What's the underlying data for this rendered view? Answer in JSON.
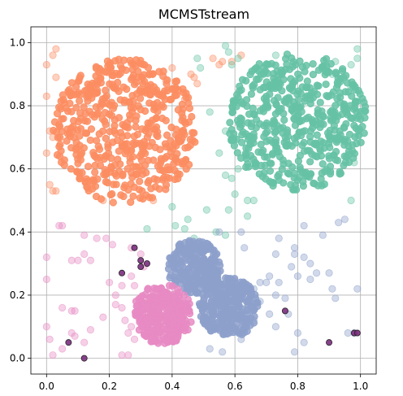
{
  "chart_data": {
    "type": "scatter",
    "title": "MCMSTstream",
    "xlabel": "",
    "ylabel": "",
    "xlim": [
      -0.05,
      1.05
    ],
    "ylim": [
      -0.05,
      1.05
    ],
    "x_ticks": [
      "0.0",
      "0.2",
      "0.4",
      "0.6",
      "0.8",
      "1.0"
    ],
    "y_ticks": [
      "0.0",
      "0.2",
      "0.4",
      "0.6",
      "0.8",
      "1.0"
    ],
    "grid": true,
    "legend": "none",
    "clusters": [
      {
        "color": "#fc8d62",
        "shape": "disk",
        "center": [
          0.25,
          0.72
        ],
        "radius": 0.23,
        "count": 520
      },
      {
        "color": "#66c2a5",
        "shape": "disk",
        "center": [
          0.8,
          0.75
        ],
        "radius": 0.22,
        "count": 520
      },
      {
        "color": "#8da0cb",
        "shape": "disk",
        "center": [
          0.47,
          0.29
        ],
        "radius": 0.085,
        "count": 230
      },
      {
        "color": "#8da0cb",
        "shape": "disk",
        "center": [
          0.58,
          0.16
        ],
        "radius": 0.095,
        "count": 280
      },
      {
        "color": "#e78ac3",
        "shape": "disk",
        "center": [
          0.37,
          0.14
        ],
        "radius": 0.095,
        "count": 300
      }
    ],
    "faint_points": [
      {
        "color": "#fc8d62",
        "points": [
          [
            0.02,
            0.96
          ],
          [
            0.03,
            0.98
          ],
          [
            0.0,
            0.93
          ],
          [
            0.0,
            0.83
          ],
          [
            0.01,
            0.72
          ],
          [
            0.02,
            0.7
          ],
          [
            0.0,
            0.65
          ],
          [
            0.01,
            0.55
          ],
          [
            0.02,
            0.53
          ],
          [
            0.03,
            0.53
          ],
          [
            0.03,
            0.89
          ],
          [
            0.38,
            0.88
          ],
          [
            0.4,
            0.92
          ],
          [
            0.41,
            0.84
          ],
          [
            0.44,
            0.82
          ],
          [
            0.46,
            0.9
          ],
          [
            0.47,
            0.89
          ],
          [
            0.48,
            0.87
          ],
          [
            0.53,
            0.95
          ],
          [
            0.55,
            0.93
          ],
          [
            0.56,
            0.94
          ],
          [
            0.59,
            0.94
          ],
          [
            0.62,
            0.96
          ],
          [
            0.15,
            0.85
          ],
          [
            0.18,
            0.5
          ],
          [
            0.34,
            0.5
          ]
        ]
      },
      {
        "color": "#66c2a5",
        "points": [
          [
            0.48,
            0.95
          ],
          [
            0.49,
            0.92
          ],
          [
            0.57,
            0.99
          ],
          [
            0.58,
            0.97
          ],
          [
            0.59,
            0.93
          ],
          [
            0.61,
            0.95
          ],
          [
            0.52,
            0.78
          ],
          [
            0.57,
            0.72
          ],
          [
            0.55,
            0.65
          ],
          [
            0.57,
            0.58
          ],
          [
            0.59,
            0.57
          ],
          [
            0.6,
            0.52
          ],
          [
            0.58,
            0.47
          ],
          [
            0.64,
            0.5
          ],
          [
            0.64,
            0.45
          ],
          [
            0.57,
            0.39
          ],
          [
            0.54,
            0.4
          ],
          [
            0.51,
            0.47
          ],
          [
            0.45,
            0.44
          ],
          [
            0.44,
            0.41
          ],
          [
            0.41,
            0.42
          ],
          [
            0.4,
            0.48
          ],
          [
            0.32,
            0.41
          ],
          [
            0.47,
            0.38
          ],
          [
            0.61,
            0.6
          ],
          [
            0.66,
            0.5
          ],
          [
            0.97,
            0.5
          ],
          [
            0.98,
            0.62
          ],
          [
            0.99,
            0.7
          ],
          [
            0.97,
            0.86
          ],
          [
            0.99,
            0.95
          ],
          [
            0.99,
            0.98
          ],
          [
            0.97,
            0.93
          ],
          [
            0.92,
            0.94
          ],
          [
            0.91,
            0.9
          ],
          [
            0.7,
            0.93
          ],
          [
            0.73,
            0.96
          ],
          [
            0.68,
            0.89
          ]
        ]
      },
      {
        "color": "#8da0cb",
        "points": [
          [
            0.95,
            0.44
          ],
          [
            0.93,
            0.43
          ],
          [
            0.99,
            0.22
          ],
          [
            0.92,
            0.19
          ],
          [
            0.91,
            0.22
          ],
          [
            0.9,
            0.27
          ],
          [
            0.84,
            0.3
          ],
          [
            0.86,
            0.27
          ],
          [
            0.84,
            0.25
          ],
          [
            0.82,
            0.32
          ],
          [
            0.8,
            0.26
          ],
          [
            0.78,
            0.29
          ],
          [
            0.79,
            0.33
          ],
          [
            0.73,
            0.33
          ],
          [
            0.74,
            0.38
          ],
          [
            0.79,
            0.35
          ],
          [
            0.82,
            0.42
          ],
          [
            0.88,
            0.39
          ],
          [
            0.66,
            0.22
          ],
          [
            0.68,
            0.24
          ],
          [
            0.7,
            0.24
          ],
          [
            0.71,
            0.26
          ],
          [
            0.73,
            0.2
          ],
          [
            0.74,
            0.24
          ],
          [
            0.76,
            0.19
          ],
          [
            0.71,
            0.14
          ],
          [
            0.73,
            0.1
          ],
          [
            0.77,
            0.14
          ],
          [
            0.8,
            0.08
          ],
          [
            0.82,
            0.05
          ],
          [
            0.79,
            0.02
          ],
          [
            0.96,
            0.08
          ],
          [
            0.98,
            0.08
          ],
          [
            0.56,
            0.02
          ],
          [
            0.52,
            0.03
          ],
          [
            0.62,
            0.06
          ],
          [
            0.66,
            0.12
          ],
          [
            0.68,
            0.18
          ],
          [
            0.63,
            0.35
          ],
          [
            0.62,
            0.4
          ],
          [
            0.55,
            0.4
          ]
        ]
      },
      {
        "color": "#e78ac3",
        "points": [
          [
            0.0,
            0.32
          ],
          [
            0.04,
            0.42
          ],
          [
            0.05,
            0.42
          ],
          [
            0.08,
            0.31
          ],
          [
            0.1,
            0.31
          ],
          [
            0.12,
            0.33
          ],
          [
            0.14,
            0.31
          ],
          [
            0.12,
            0.39
          ],
          [
            0.16,
            0.38
          ],
          [
            0.19,
            0.38
          ],
          [
            0.21,
            0.36
          ],
          [
            0.2,
            0.24
          ],
          [
            0.22,
            0.2
          ],
          [
            0.24,
            0.23
          ],
          [
            0.27,
            0.26
          ],
          [
            0.28,
            0.23
          ],
          [
            0.22,
            0.17
          ],
          [
            0.24,
            0.16
          ],
          [
            0.25,
            0.12
          ],
          [
            0.26,
            0.08
          ],
          [
            0.26,
            0.01
          ],
          [
            0.24,
            0.01
          ],
          [
            0.18,
            0.13
          ],
          [
            0.14,
            0.09
          ],
          [
            0.12,
            0.05
          ],
          [
            0.09,
            0.07
          ],
          [
            0.08,
            0.08
          ],
          [
            0.09,
            0.15
          ],
          [
            0.08,
            0.15
          ],
          [
            0.05,
            0.16
          ],
          [
            0.05,
            0.03
          ],
          [
            0.02,
            0.01
          ],
          [
            0.0,
            0.25
          ],
          [
            0.0,
            0.1
          ],
          [
            0.01,
            0.06
          ],
          [
            0.27,
            0.1
          ],
          [
            0.28,
            0.06
          ],
          [
            0.3,
            0.18
          ],
          [
            0.27,
            0.35
          ],
          [
            0.3,
            0.33
          ],
          [
            0.31,
            0.29
          ]
        ]
      }
    ],
    "highlighted_points": {
      "color": "#7b2d7e",
      "points": [
        [
          0.28,
          0.35
        ],
        [
          0.3,
          0.31
        ],
        [
          0.3,
          0.29
        ],
        [
          0.32,
          0.3
        ],
        [
          0.24,
          0.27
        ],
        [
          0.07,
          0.05
        ],
        [
          0.12,
          0.0
        ],
        [
          0.76,
          0.15
        ],
        [
          0.9,
          0.05
        ],
        [
          0.98,
          0.08
        ],
        [
          0.99,
          0.08
        ]
      ]
    }
  }
}
